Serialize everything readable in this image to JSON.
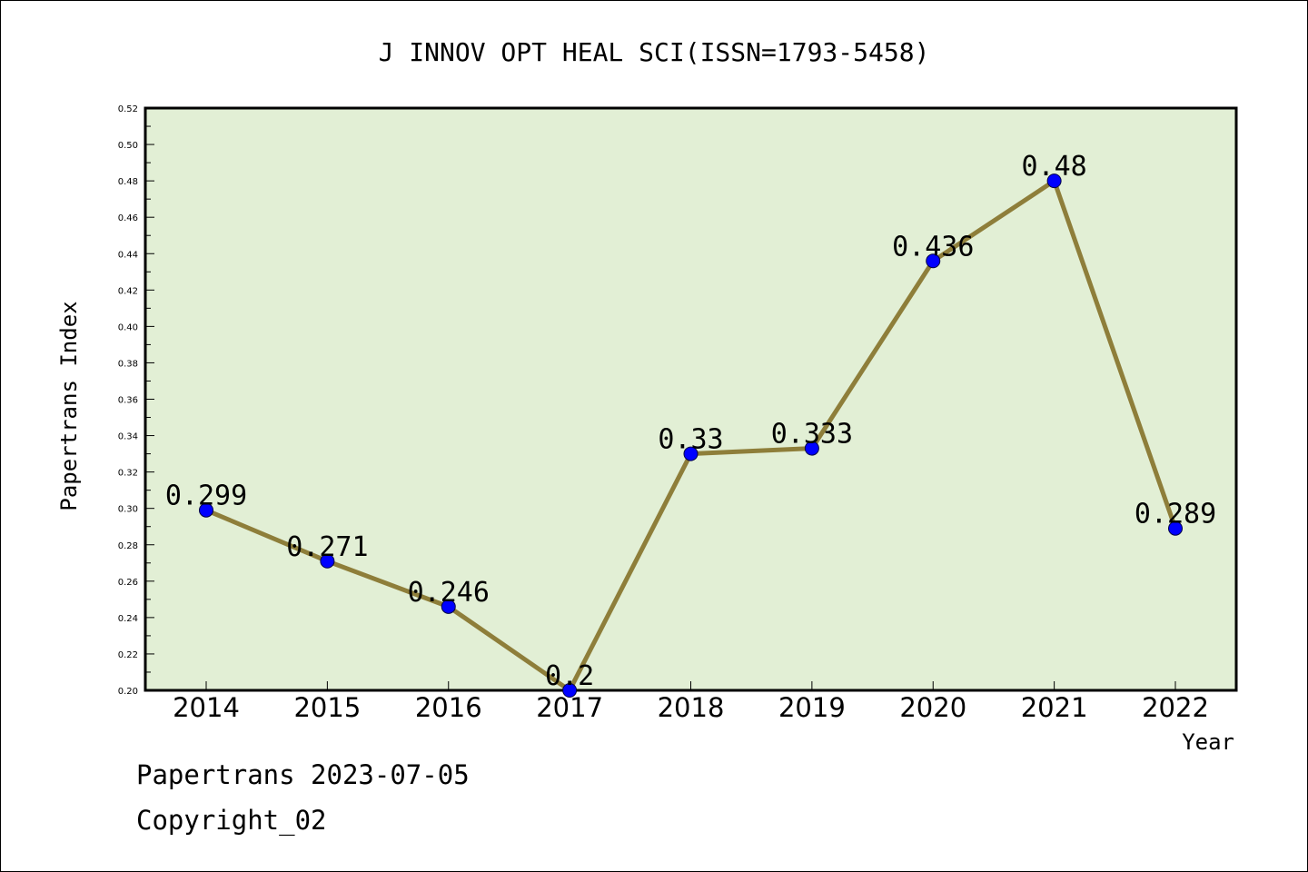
{
  "chart_data": {
    "type": "line",
    "title": "J INNOV OPT HEAL SCI(ISSN=1793-5458)",
    "xlabel": "Year",
    "ylabel": "Papertrans Index",
    "categories": [
      "2014",
      "2015",
      "2016",
      "2017",
      "2018",
      "2019",
      "2020",
      "2021",
      "2022"
    ],
    "series": [
      {
        "values": [
          0.299,
          0.271,
          0.246,
          0.2,
          0.33,
          0.333,
          0.436,
          0.48,
          0.289
        ],
        "labels": [
          "0.299",
          "0.271",
          "0.246",
          "0.2",
          "0.33",
          "0.333",
          "0.436",
          "0.48",
          "0.289"
        ]
      }
    ],
    "ylim": [
      0.2,
      0.52
    ],
    "yticks": [
      "0.20",
      "0.22",
      "0.24",
      "0.26",
      "0.28",
      "0.30",
      "0.32",
      "0.34",
      "0.36",
      "0.38",
      "0.40",
      "0.42",
      "0.44",
      "0.46",
      "0.48",
      "0.50",
      "0.52"
    ],
    "grid": false,
    "legend": "none",
    "colors": {
      "plot_background": "#e2efd5",
      "line": "#8e7e3a",
      "marker": "#0000ff"
    }
  },
  "footer": {
    "line1": "Papertrans 2023-07-05",
    "line2": "Copyright_02"
  }
}
